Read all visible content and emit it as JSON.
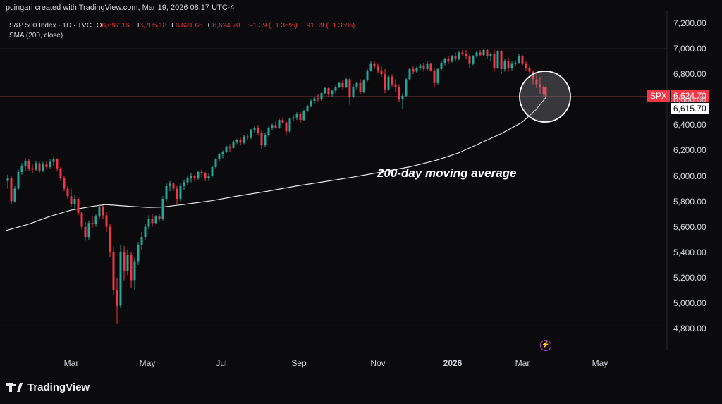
{
  "header": {
    "credit": "pcingari created with TradingView.com, Mar 19, 2026 08:17 UTC-4"
  },
  "legend": {
    "symbol_line": "S&P 500 Index · 1D · TVC",
    "o_label": "O",
    "o_value": "6,697.16",
    "h_label": "H",
    "h_value": "6,705.18",
    "l_label": "L",
    "l_value": "6,621.66",
    "c_label": "C",
    "c_value": "6,624.70",
    "change": "−91.39 (−1.36%)",
    "change2": "−91.39 (−1.36%)",
    "sma_line": "SMA (200, close)"
  },
  "annotation": "200-day moving average",
  "price_tags": {
    "symbol": "SPX",
    "last_price": "6,624.70",
    "sma_value": "6,615.70"
  },
  "logo": {
    "text": "TradingView"
  },
  "colors": {
    "up": "#26a69a",
    "down": "#f23645",
    "sma": "#e6e6e6",
    "grid": "#2a2a2e",
    "background": "#0b0b0d"
  },
  "chart_data": {
    "type": "candlestick",
    "title": "S&P 500 Index · 1D · TVC",
    "y_axis": {
      "ticks": [
        "7,200.00",
        "7,000.00",
        "6,800.00",
        "6,600.00",
        "6,400.00",
        "6,200.00",
        "6,000.00",
        "5,800.00",
        "5,600.00",
        "5,400.00",
        "5,200.00",
        "5,000.00",
        "4,800.00"
      ],
      "ylim": [
        4780,
        7220
      ]
    },
    "x_axis": {
      "ticks": [
        "Mar",
        "May",
        "Jul",
        "Sep",
        "Nov",
        "2026",
        "Mar",
        "May"
      ]
    },
    "candles": [
      {
        "x": 11,
        "o": 5960,
        "h": 6010,
        "l": 5900,
        "c": 5985
      },
      {
        "x": 16,
        "o": 5985,
        "h": 6000,
        "l": 5780,
        "c": 5800
      },
      {
        "x": 21,
        "o": 5800,
        "h": 5920,
        "l": 5790,
        "c": 5900
      },
      {
        "x": 26,
        "o": 5900,
        "h": 6050,
        "l": 5890,
        "c": 6030
      },
      {
        "x": 31,
        "o": 6030,
        "h": 6100,
        "l": 6010,
        "c": 6080
      },
      {
        "x": 36,
        "o": 6080,
        "h": 6140,
        "l": 6040,
        "c": 6120
      },
      {
        "x": 41,
        "o": 6120,
        "h": 6130,
        "l": 6040,
        "c": 6060
      },
      {
        "x": 46,
        "o": 6060,
        "h": 6090,
        "l": 6020,
        "c": 6050
      },
      {
        "x": 51,
        "o": 6050,
        "h": 6120,
        "l": 6040,
        "c": 6100
      },
      {
        "x": 56,
        "o": 6100,
        "h": 6110,
        "l": 6020,
        "c": 6040
      },
      {
        "x": 61,
        "o": 6040,
        "h": 6110,
        "l": 6030,
        "c": 6090
      },
      {
        "x": 66,
        "o": 6090,
        "h": 6120,
        "l": 6050,
        "c": 6070
      },
      {
        "x": 71,
        "o": 6070,
        "h": 6130,
        "l": 6060,
        "c": 6110
      },
      {
        "x": 76,
        "o": 6110,
        "h": 6150,
        "l": 6080,
        "c": 6130
      },
      {
        "x": 81,
        "o": 6130,
        "h": 6140,
        "l": 6040,
        "c": 6060
      },
      {
        "x": 86,
        "o": 6060,
        "h": 6070,
        "l": 5960,
        "c": 5980
      },
      {
        "x": 91,
        "o": 5980,
        "h": 6000,
        "l": 5880,
        "c": 5900
      },
      {
        "x": 96,
        "o": 5900,
        "h": 5920,
        "l": 5820,
        "c": 5840
      },
      {
        "x": 101,
        "o": 5840,
        "h": 5900,
        "l": 5760,
        "c": 5780
      },
      {
        "x": 106,
        "o": 5780,
        "h": 5850,
        "l": 5740,
        "c": 5820
      },
      {
        "x": 111,
        "o": 5820,
        "h": 5830,
        "l": 5690,
        "c": 5710
      },
      {
        "x": 116,
        "o": 5710,
        "h": 5720,
        "l": 5580,
        "c": 5600
      },
      {
        "x": 121,
        "o": 5600,
        "h": 5640,
        "l": 5490,
        "c": 5520
      },
      {
        "x": 126,
        "o": 5520,
        "h": 5650,
        "l": 5500,
        "c": 5630
      },
      {
        "x": 131,
        "o": 5630,
        "h": 5680,
        "l": 5590,
        "c": 5620
      },
      {
        "x": 136,
        "o": 5620,
        "h": 5700,
        "l": 5600,
        "c": 5680
      },
      {
        "x": 141,
        "o": 5680,
        "h": 5780,
        "l": 5660,
        "c": 5760
      },
      {
        "x": 146,
        "o": 5760,
        "h": 5770,
        "l": 5660,
        "c": 5690
      },
      {
        "x": 151,
        "o": 5690,
        "h": 5720,
        "l": 5560,
        "c": 5600
      },
      {
        "x": 156,
        "o": 5600,
        "h": 5620,
        "l": 5360,
        "c": 5400
      },
      {
        "x": 161,
        "o": 5400,
        "h": 5440,
        "l": 5060,
        "c": 5100
      },
      {
        "x": 166,
        "o": 5100,
        "h": 5200,
        "l": 4840,
        "c": 4980
      },
      {
        "x": 171,
        "o": 4980,
        "h": 5460,
        "l": 4960,
        "c": 5400
      },
      {
        "x": 176,
        "o": 5400,
        "h": 5450,
        "l": 5180,
        "c": 5250
      },
      {
        "x": 181,
        "o": 5250,
        "h": 5420,
        "l": 5220,
        "c": 5380
      },
      {
        "x": 186,
        "o": 5380,
        "h": 5400,
        "l": 5120,
        "c": 5180
      },
      {
        "x": 191,
        "o": 5180,
        "h": 5360,
        "l": 5100,
        "c": 5330
      },
      {
        "x": 196,
        "o": 5330,
        "h": 5480,
        "l": 5300,
        "c": 5460
      },
      {
        "x": 201,
        "o": 5460,
        "h": 5560,
        "l": 5420,
        "c": 5520
      },
      {
        "x": 206,
        "o": 5520,
        "h": 5620,
        "l": 5500,
        "c": 5600
      },
      {
        "x": 211,
        "o": 5600,
        "h": 5690,
        "l": 5580,
        "c": 5660
      },
      {
        "x": 216,
        "o": 5660,
        "h": 5700,
        "l": 5600,
        "c": 5630
      },
      {
        "x": 221,
        "o": 5630,
        "h": 5690,
        "l": 5620,
        "c": 5680
      },
      {
        "x": 226,
        "o": 5680,
        "h": 5700,
        "l": 5640,
        "c": 5660
      },
      {
        "x": 231,
        "o": 5660,
        "h": 5840,
        "l": 5650,
        "c": 5820
      },
      {
        "x": 236,
        "o": 5820,
        "h": 5940,
        "l": 5800,
        "c": 5920
      },
      {
        "x": 241,
        "o": 5920,
        "h": 5960,
        "l": 5880,
        "c": 5940
      },
      {
        "x": 246,
        "o": 5940,
        "h": 5950,
        "l": 5880,
        "c": 5900
      },
      {
        "x": 251,
        "o": 5900,
        "h": 5920,
        "l": 5780,
        "c": 5820
      },
      {
        "x": 256,
        "o": 5820,
        "h": 5940,
        "l": 5800,
        "c": 5920
      },
      {
        "x": 261,
        "o": 5920,
        "h": 5970,
        "l": 5890,
        "c": 5950
      },
      {
        "x": 266,
        "o": 5950,
        "h": 6000,
        "l": 5930,
        "c": 5980
      },
      {
        "x": 271,
        "o": 5980,
        "h": 6020,
        "l": 5950,
        "c": 6000
      },
      {
        "x": 276,
        "o": 6000,
        "h": 6010,
        "l": 5960,
        "c": 5980
      },
      {
        "x": 281,
        "o": 5980,
        "h": 6040,
        "l": 5970,
        "c": 6030
      },
      {
        "x": 286,
        "o": 6030,
        "h": 6050,
        "l": 5990,
        "c": 6020
      },
      {
        "x": 291,
        "o": 6020,
        "h": 6030,
        "l": 5960,
        "c": 5980
      },
      {
        "x": 296,
        "o": 5980,
        "h": 6020,
        "l": 5960,
        "c": 6000
      },
      {
        "x": 301,
        "o": 6000,
        "h": 6080,
        "l": 5990,
        "c": 6070
      },
      {
        "x": 306,
        "o": 6070,
        "h": 6140,
        "l": 6060,
        "c": 6130
      },
      {
        "x": 311,
        "o": 6130,
        "h": 6180,
        "l": 6110,
        "c": 6170
      },
      {
        "x": 316,
        "o": 6170,
        "h": 6200,
        "l": 6140,
        "c": 6190
      },
      {
        "x": 321,
        "o": 6190,
        "h": 6240,
        "l": 6180,
        "c": 6230
      },
      {
        "x": 326,
        "o": 6230,
        "h": 6250,
        "l": 6190,
        "c": 6220
      },
      {
        "x": 331,
        "o": 6220,
        "h": 6280,
        "l": 6210,
        "c": 6270
      },
      {
        "x": 336,
        "o": 6270,
        "h": 6290,
        "l": 6250,
        "c": 6280
      },
      {
        "x": 341,
        "o": 6280,
        "h": 6300,
        "l": 6240,
        "c": 6260
      },
      {
        "x": 346,
        "o": 6260,
        "h": 6320,
        "l": 6250,
        "c": 6310
      },
      {
        "x": 351,
        "o": 6310,
        "h": 6330,
        "l": 6280,
        "c": 6300
      },
      {
        "x": 356,
        "o": 6300,
        "h": 6370,
        "l": 6290,
        "c": 6360
      },
      {
        "x": 361,
        "o": 6360,
        "h": 6390,
        "l": 6340,
        "c": 6380
      },
      {
        "x": 366,
        "o": 6380,
        "h": 6400,
        "l": 6320,
        "c": 6340
      },
      {
        "x": 371,
        "o": 6340,
        "h": 6360,
        "l": 6210,
        "c": 6240
      },
      {
        "x": 376,
        "o": 6240,
        "h": 6340,
        "l": 6230,
        "c": 6320
      },
      {
        "x": 381,
        "o": 6320,
        "h": 6390,
        "l": 6310,
        "c": 6380
      },
      {
        "x": 386,
        "o": 6380,
        "h": 6410,
        "l": 6360,
        "c": 6400
      },
      {
        "x": 391,
        "o": 6400,
        "h": 6430,
        "l": 6370,
        "c": 6380
      },
      {
        "x": 396,
        "o": 6380,
        "h": 6450,
        "l": 6370,
        "c": 6440
      },
      {
        "x": 401,
        "o": 6440,
        "h": 6460,
        "l": 6410,
        "c": 6420
      },
      {
        "x": 406,
        "o": 6420,
        "h": 6430,
        "l": 6320,
        "c": 6350
      },
      {
        "x": 411,
        "o": 6350,
        "h": 6460,
        "l": 6340,
        "c": 6450
      },
      {
        "x": 416,
        "o": 6450,
        "h": 6480,
        "l": 6430,
        "c": 6460
      },
      {
        "x": 421,
        "o": 6460,
        "h": 6500,
        "l": 6440,
        "c": 6490
      },
      {
        "x": 426,
        "o": 6490,
        "h": 6500,
        "l": 6420,
        "c": 6440
      },
      {
        "x": 431,
        "o": 6440,
        "h": 6520,
        "l": 6430,
        "c": 6510
      },
      {
        "x": 436,
        "o": 6510,
        "h": 6560,
        "l": 6500,
        "c": 6550
      },
      {
        "x": 441,
        "o": 6550,
        "h": 6600,
        "l": 6540,
        "c": 6590
      },
      {
        "x": 446,
        "o": 6590,
        "h": 6620,
        "l": 6570,
        "c": 6610
      },
      {
        "x": 451,
        "o": 6610,
        "h": 6640,
        "l": 6580,
        "c": 6600
      },
      {
        "x": 456,
        "o": 6600,
        "h": 6660,
        "l": 6590,
        "c": 6650
      },
      {
        "x": 461,
        "o": 6650,
        "h": 6700,
        "l": 6640,
        "c": 6690
      },
      {
        "x": 466,
        "o": 6690,
        "h": 6700,
        "l": 6620,
        "c": 6640
      },
      {
        "x": 471,
        "o": 6640,
        "h": 6680,
        "l": 6620,
        "c": 6670
      },
      {
        "x": 476,
        "o": 6670,
        "h": 6710,
        "l": 6650,
        "c": 6700
      },
      {
        "x": 481,
        "o": 6700,
        "h": 6740,
        "l": 6690,
        "c": 6730
      },
      {
        "x": 486,
        "o": 6730,
        "h": 6750,
        "l": 6680,
        "c": 6700
      },
      {
        "x": 491,
        "o": 6700,
        "h": 6770,
        "l": 6690,
        "c": 6760
      },
      {
        "x": 496,
        "o": 6760,
        "h": 6770,
        "l": 6560,
        "c": 6620
      },
      {
        "x": 501,
        "o": 6620,
        "h": 6720,
        "l": 6610,
        "c": 6700
      },
      {
        "x": 506,
        "o": 6700,
        "h": 6740,
        "l": 6680,
        "c": 6730
      },
      {
        "x": 511,
        "o": 6730,
        "h": 6760,
        "l": 6640,
        "c": 6660
      },
      {
        "x": 516,
        "o": 6660,
        "h": 6760,
        "l": 6650,
        "c": 6750
      },
      {
        "x": 521,
        "o": 6750,
        "h": 6840,
        "l": 6740,
        "c": 6830
      },
      {
        "x": 526,
        "o": 6830,
        "h": 6900,
        "l": 6820,
        "c": 6880
      },
      {
        "x": 531,
        "o": 6880,
        "h": 6900,
        "l": 6840,
        "c": 6860
      },
      {
        "x": 536,
        "o": 6860,
        "h": 6880,
        "l": 6810,
        "c": 6830
      },
      {
        "x": 541,
        "o": 6830,
        "h": 6860,
        "l": 6780,
        "c": 6800
      },
      {
        "x": 546,
        "o": 6800,
        "h": 6840,
        "l": 6650,
        "c": 6680
      },
      {
        "x": 551,
        "o": 6680,
        "h": 6790,
        "l": 6670,
        "c": 6780
      },
      {
        "x": 556,
        "o": 6780,
        "h": 6800,
        "l": 6700,
        "c": 6720
      },
      {
        "x": 561,
        "o": 6720,
        "h": 6760,
        "l": 6660,
        "c": 6700
      },
      {
        "x": 566,
        "o": 6700,
        "h": 6720,
        "l": 6580,
        "c": 6600
      },
      {
        "x": 571,
        "o": 6600,
        "h": 6650,
        "l": 6530,
        "c": 6630
      },
      {
        "x": 576,
        "o": 6630,
        "h": 6770,
        "l": 6620,
        "c": 6760
      },
      {
        "x": 581,
        "o": 6760,
        "h": 6850,
        "l": 6750,
        "c": 6840
      },
      {
        "x": 586,
        "o": 6840,
        "h": 6860,
        "l": 6800,
        "c": 6820
      },
      {
        "x": 591,
        "o": 6820,
        "h": 6860,
        "l": 6810,
        "c": 6850
      },
      {
        "x": 596,
        "o": 6850,
        "h": 6880,
        "l": 6830,
        "c": 6870
      },
      {
        "x": 601,
        "o": 6870,
        "h": 6890,
        "l": 6820,
        "c": 6840
      },
      {
        "x": 606,
        "o": 6840,
        "h": 6900,
        "l": 6830,
        "c": 6880
      },
      {
        "x": 611,
        "o": 6880,
        "h": 6890,
        "l": 6820,
        "c": 6830
      },
      {
        "x": 616,
        "o": 6830,
        "h": 6850,
        "l": 6700,
        "c": 6730
      },
      {
        "x": 621,
        "o": 6730,
        "h": 6850,
        "l": 6720,
        "c": 6840
      },
      {
        "x": 626,
        "o": 6840,
        "h": 6900,
        "l": 6830,
        "c": 6890
      },
      {
        "x": 631,
        "o": 6890,
        "h": 6930,
        "l": 6870,
        "c": 6920
      },
      {
        "x": 636,
        "o": 6920,
        "h": 6940,
        "l": 6880,
        "c": 6900
      },
      {
        "x": 641,
        "o": 6900,
        "h": 6950,
        "l": 6890,
        "c": 6940
      },
      {
        "x": 646,
        "o": 6940,
        "h": 6970,
        "l": 6900,
        "c": 6920
      },
      {
        "x": 651,
        "o": 6920,
        "h": 6980,
        "l": 6910,
        "c": 6970
      },
      {
        "x": 656,
        "o": 6970,
        "h": 6990,
        "l": 6940,
        "c": 6960
      },
      {
        "x": 661,
        "o": 6960,
        "h": 6990,
        "l": 6920,
        "c": 6940
      },
      {
        "x": 666,
        "o": 6940,
        "h": 6960,
        "l": 6850,
        "c": 6880
      },
      {
        "x": 671,
        "o": 6880,
        "h": 6950,
        "l": 6870,
        "c": 6940
      },
      {
        "x": 676,
        "o": 6940,
        "h": 6980,
        "l": 6930,
        "c": 6970
      },
      {
        "x": 681,
        "o": 6970,
        "h": 6990,
        "l": 6940,
        "c": 6950
      },
      {
        "x": 686,
        "o": 6950,
        "h": 7000,
        "l": 6940,
        "c": 6990
      },
      {
        "x": 691,
        "o": 6990,
        "h": 7000,
        "l": 6920,
        "c": 6940
      },
      {
        "x": 696,
        "o": 6940,
        "h": 6970,
        "l": 6900,
        "c": 6960
      },
      {
        "x": 701,
        "o": 6960,
        "h": 6990,
        "l": 6820,
        "c": 6850
      },
      {
        "x": 706,
        "o": 6850,
        "h": 6990,
        "l": 6840,
        "c": 6980
      },
      {
        "x": 711,
        "o": 6980,
        "h": 6990,
        "l": 6800,
        "c": 6840
      },
      {
        "x": 716,
        "o": 6840,
        "h": 6920,
        "l": 6820,
        "c": 6900
      },
      {
        "x": 721,
        "o": 6900,
        "h": 6930,
        "l": 6820,
        "c": 6850
      },
      {
        "x": 726,
        "o": 6850,
        "h": 6900,
        "l": 6830,
        "c": 6880
      },
      {
        "x": 731,
        "o": 6880,
        "h": 6910,
        "l": 6860,
        "c": 6890
      },
      {
        "x": 736,
        "o": 6890,
        "h": 6960,
        "l": 6880,
        "c": 6940
      },
      {
        "x": 741,
        "o": 6940,
        "h": 6950,
        "l": 6870,
        "c": 6880
      },
      {
        "x": 746,
        "o": 6880,
        "h": 6900,
        "l": 6830,
        "c": 6850
      },
      {
        "x": 751,
        "o": 6850,
        "h": 6870,
        "l": 6800,
        "c": 6820
      },
      {
        "x": 756,
        "o": 6820,
        "h": 6830,
        "l": 6720,
        "c": 6760
      },
      {
        "x": 761,
        "o": 6760,
        "h": 6800,
        "l": 6690,
        "c": 6720
      },
      {
        "x": 766,
        "o": 6720,
        "h": 6780,
        "l": 6640,
        "c": 6700
      },
      {
        "x": 771,
        "o": 6700,
        "h": 6710,
        "l": 6620,
        "c": 6640
      },
      {
        "x": 774,
        "o": 6697,
        "h": 6705,
        "l": 6622,
        "c": 6625
      }
    ],
    "sma": [
      [
        8,
        5570
      ],
      [
        40,
        5620
      ],
      [
        70,
        5680
      ],
      [
        100,
        5730
      ],
      [
        130,
        5760
      ],
      [
        150,
        5775
      ],
      [
        180,
        5762
      ],
      [
        210,
        5752
      ],
      [
        230,
        5755
      ],
      [
        260,
        5775
      ],
      [
        300,
        5805
      ],
      [
        340,
        5845
      ],
      [
        380,
        5880
      ],
      [
        420,
        5920
      ],
      [
        460,
        5955
      ],
      [
        500,
        5990
      ],
      [
        540,
        6030
      ],
      [
        580,
        6070
      ],
      [
        620,
        6125
      ],
      [
        650,
        6180
      ],
      [
        680,
        6255
      ],
      [
        710,
        6330
      ],
      [
        740,
        6420
      ],
      [
        760,
        6520
      ],
      [
        774,
        6616
      ]
    ]
  }
}
